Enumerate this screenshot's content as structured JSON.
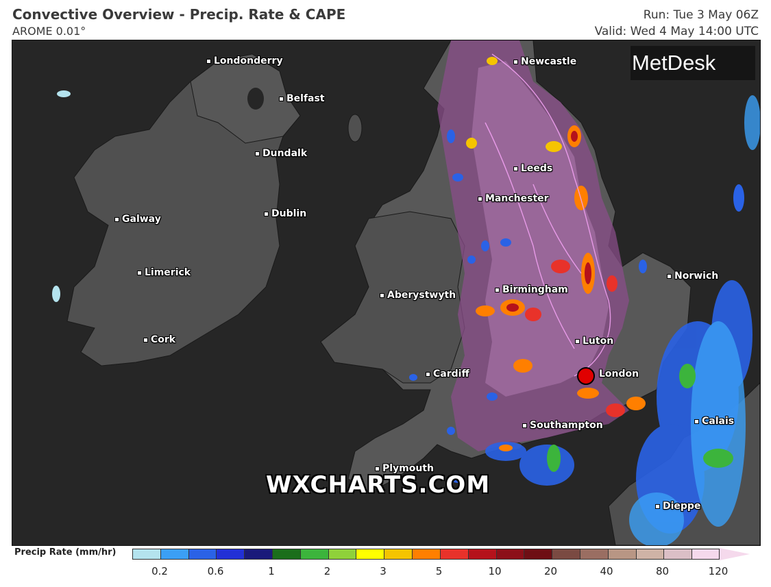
{
  "header": {
    "title": "Convective Overview - Precip. Rate & CAPE",
    "model": "AROME 0.01°",
    "run": "Run: Tue 3 May 06Z",
    "valid": "Valid: Wed 4 May 14:00 UTC"
  },
  "logo": {
    "text": "MetDesk",
    "icon": "metdesk-starburst-icon"
  },
  "watermark": "WXCHARTS.COM",
  "cities": [
    {
      "name": "Londonderry"
    },
    {
      "name": "Newcastle"
    },
    {
      "name": "Belfast"
    },
    {
      "name": "Dundalk"
    },
    {
      "name": "Leeds"
    },
    {
      "name": "Manchester"
    },
    {
      "name": "Galway"
    },
    {
      "name": "Dublin"
    },
    {
      "name": "Norwich"
    },
    {
      "name": "Limerick"
    },
    {
      "name": "Birmingham"
    },
    {
      "name": "Aberystwyth"
    },
    {
      "name": "Luton"
    },
    {
      "name": "Cork"
    },
    {
      "name": "Cardiff"
    },
    {
      "name": "London"
    },
    {
      "name": "Calais"
    },
    {
      "name": "Southampton"
    },
    {
      "name": "Plymouth"
    },
    {
      "name": "Dieppe"
    }
  ],
  "highlight_marker": {
    "city": "London",
    "color": "#e00000"
  },
  "legend": {
    "title": "Precip Rate (mm/hr)",
    "ticks": [
      "0.2",
      "0.6",
      "1",
      "2",
      "3",
      "5",
      "10",
      "20",
      "40",
      "80",
      "120"
    ],
    "colors": [
      "#b4e3ee",
      "#3b9ff5",
      "#2a62e6",
      "#2230d6",
      "#1a1a7a",
      "#1b6e1b",
      "#3cb43c",
      "#8fd13a",
      "#ffff00",
      "#f5c400",
      "#ff7f00",
      "#e8322a",
      "#b5121b",
      "#8c0f18",
      "#6e0e14",
      "#7a4a42",
      "#9a6e62",
      "#b89684",
      "#cfb3a6",
      "#dbbfc6",
      "#f5d9ec"
    ]
  }
}
